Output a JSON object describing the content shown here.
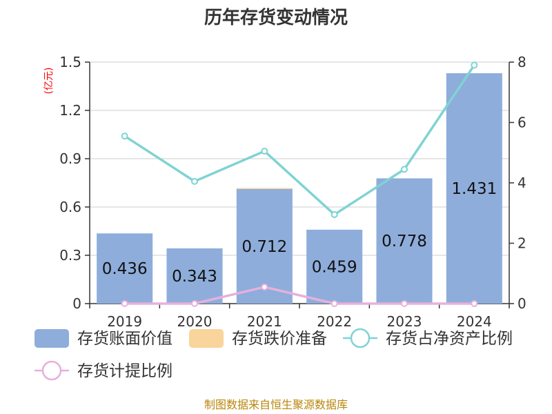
{
  "chart_data": {
    "type": "bar",
    "title": "历年存货变动情况",
    "ylabel_left": "(亿元)",
    "categories": [
      "2019",
      "2020",
      "2021",
      "2022",
      "2023",
      "2024"
    ],
    "ylim_left": [
      0,
      1.5
    ],
    "left_ticks": [
      "0",
      "0.3",
      "0.6",
      "0.9",
      "1.2",
      "1.5"
    ],
    "ylim_right": [
      0,
      8
    ],
    "right_ticks": [
      "0",
      "2",
      "4",
      "6",
      "8"
    ],
    "series": [
      {
        "name": "存货账面价值",
        "kind": "bar",
        "axis": "left",
        "color": "#8eaddb",
        "values": [
          0.436,
          0.343,
          0.712,
          0.459,
          0.778,
          1.431
        ],
        "labels": [
          "0.436",
          "0.343",
          "0.712",
          "0.459",
          "0.778",
          "1.431"
        ]
      },
      {
        "name": "存货跌价准备",
        "kind": "bar",
        "axis": "left",
        "color": "#f9d49b",
        "values": [
          0,
          0,
          0.006,
          0,
          0,
          0
        ]
      },
      {
        "name": "存货占净资产比例",
        "kind": "line",
        "axis": "right",
        "color": "#7fd3d3",
        "values": [
          5.55,
          4.05,
          5.05,
          2.95,
          4.45,
          7.9
        ]
      },
      {
        "name": "存货计提比例",
        "kind": "line",
        "axis": "right",
        "color": "#e6b0dc",
        "values": [
          0,
          0,
          0.55,
          0,
          0,
          0
        ]
      }
    ],
    "grid": true,
    "legend_placement": "bottom"
  },
  "footer": {
    "source": "制图数据来自恒生聚源数据库"
  }
}
